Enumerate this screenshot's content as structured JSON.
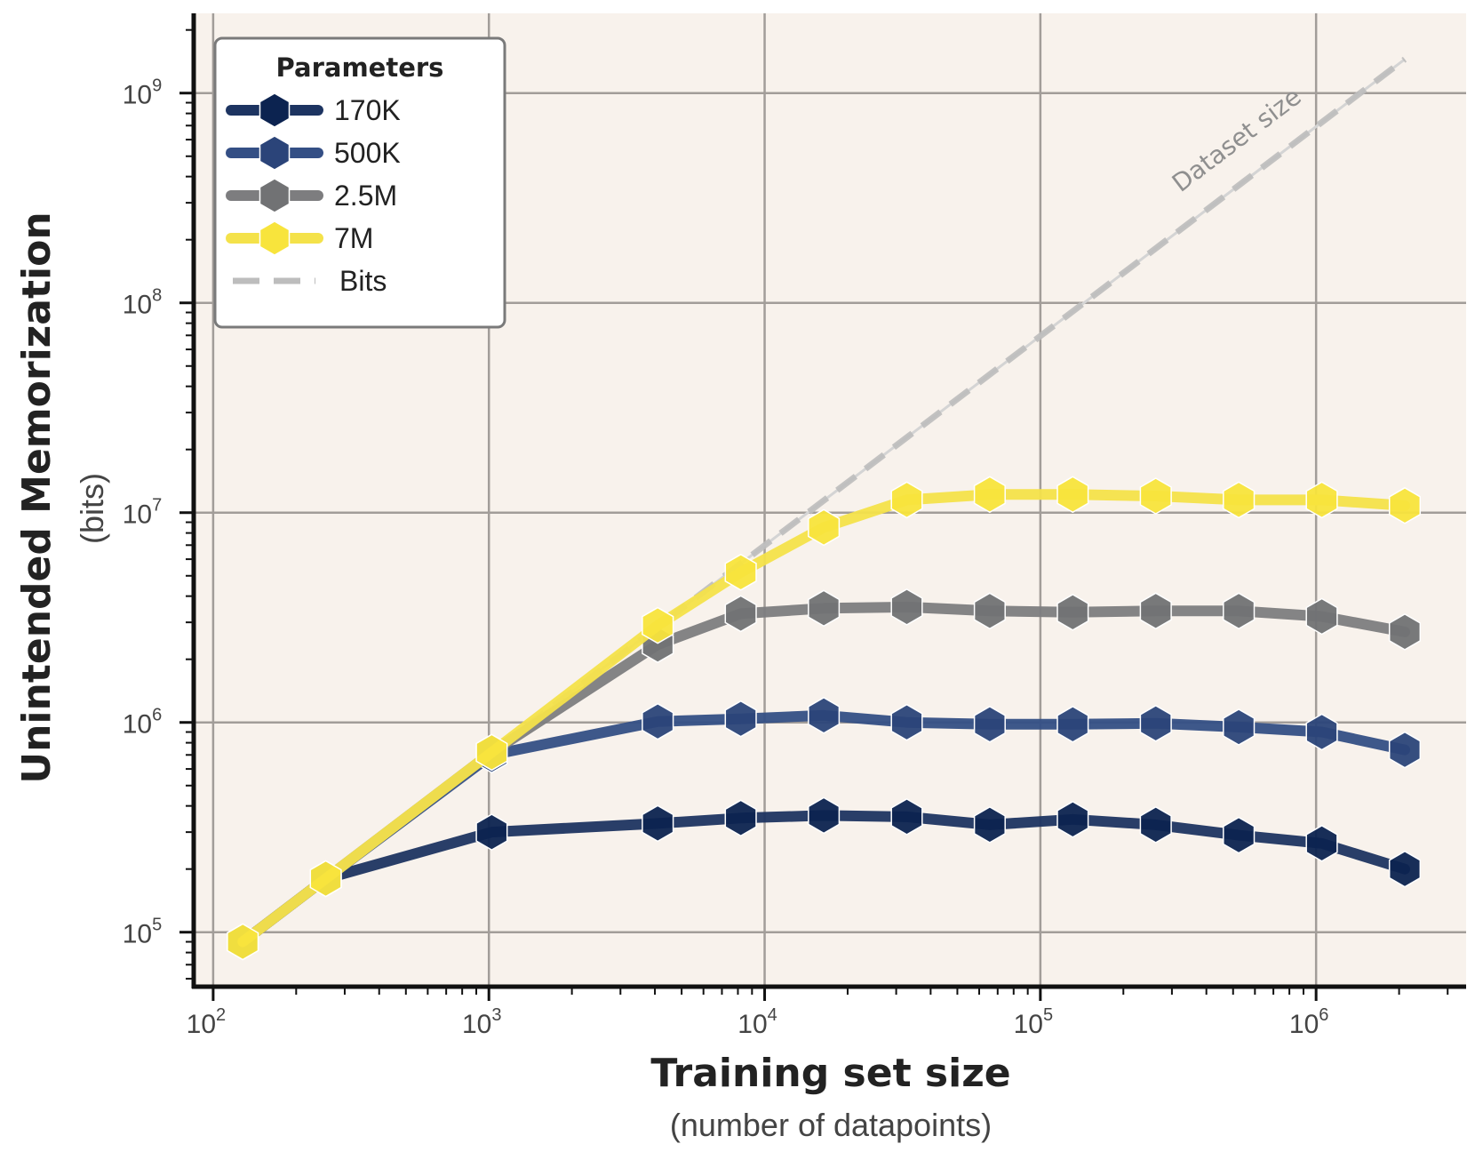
{
  "chart_data": {
    "type": "line",
    "title": "",
    "xlabel": "Training set size",
    "xlabel_sub": "(number of datapoints)",
    "ylabel": "Unintended Memorization",
    "ylabel_sub": "(bits)",
    "xscale": "log",
    "yscale": "log",
    "xlim": [
      85,
      3500000
    ],
    "ylim": [
      55000,
      2400000000
    ],
    "x_ticks": [
      {
        "base": "10",
        "exp": "2",
        "value": 100
      },
      {
        "base": "10",
        "exp": "3",
        "value": 1000
      },
      {
        "base": "10",
        "exp": "4",
        "value": 10000
      },
      {
        "base": "10",
        "exp": "5",
        "value": 100000
      },
      {
        "base": "10",
        "exp": "6",
        "value": 1000000
      }
    ],
    "y_ticks": [
      {
        "base": "10",
        "exp": "5",
        "value": 100000
      },
      {
        "base": "10",
        "exp": "6",
        "value": 1000000
      },
      {
        "base": "10",
        "exp": "7",
        "value": 10000000
      },
      {
        "base": "10",
        "exp": "8",
        "value": 100000000
      },
      {
        "base": "10",
        "exp": "9",
        "value": 1000000000
      }
    ],
    "grid": true,
    "legend": {
      "title": "Parameters",
      "position": "top-left"
    },
    "x": [
      128,
      256,
      1024,
      4096,
      8192,
      16384,
      32768,
      65536,
      131072,
      262144,
      524288,
      1048576,
      2097152
    ],
    "series": [
      {
        "name": "170K",
        "color": "#1d3461",
        "marker_color": "#0c2350",
        "values": [
          90000,
          180000,
          300000,
          330000,
          350000,
          360000,
          355000,
          325000,
          345000,
          325000,
          290000,
          265000,
          200000
        ]
      },
      {
        "name": "500K",
        "color": "#344f85",
        "marker_color": "#2b4479",
        "values": [
          90000,
          180000,
          700000,
          1010000,
          1040000,
          1080000,
          1000000,
          980000,
          980000,
          990000,
          950000,
          900000,
          740000
        ]
      },
      {
        "name": "2.5M",
        "color": "#7d7d7f",
        "marker_color": "#717274",
        "values": [
          90000,
          180000,
          720000,
          2350000,
          3300000,
          3500000,
          3550000,
          3400000,
          3350000,
          3400000,
          3400000,
          3200000,
          2700000
        ]
      },
      {
        "name": "7M",
        "color": "#f4e24a",
        "marker_color": "#f8e43c",
        "values": [
          90000,
          180000,
          720000,
          2900000,
          5200000,
          8500000,
          11500000,
          12200000,
          12200000,
          12000000,
          11500000,
          11500000,
          10800000
        ]
      }
    ],
    "reference_line": {
      "name": "Bits",
      "color": "#bdbdbd",
      "style": "dashed",
      "x": [
        128,
        2097152
      ],
      "values": [
        90000,
        1450000000
      ],
      "annotation": "Dataset size"
    }
  }
}
